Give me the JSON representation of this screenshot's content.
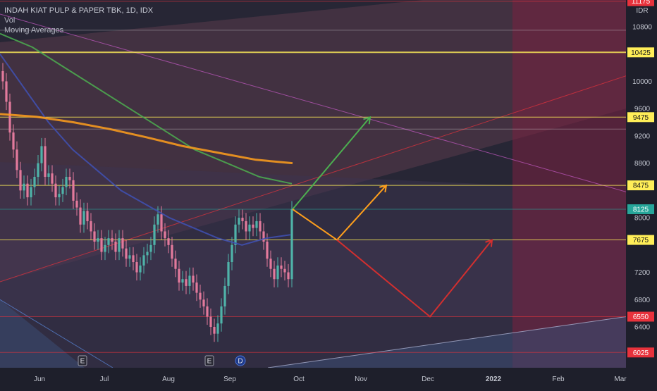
{
  "legend": {
    "title": "INDAH KIAT PULP & PAPER TBK, 1D, IDX",
    "vol": "Vol",
    "ma": "Moving Averages"
  },
  "chart_data": {
    "type": "candlestick",
    "currency": "IDR",
    "x_labels": [
      "Jun",
      "Jul",
      "Aug",
      "Sep",
      "Oct",
      "Nov",
      "Dec",
      "2022",
      "Feb",
      "Mar"
    ],
    "y_ticks": [
      10800,
      10000,
      9600,
      9200,
      8800,
      8000,
      7200,
      6800,
      6400
    ],
    "y_range": [
      6025,
      11175
    ],
    "last_price": 8125,
    "price_levels": [
      {
        "value": 11175,
        "label": "11175",
        "color": "#e8323c"
      },
      {
        "value": 10425,
        "label": "10425",
        "color": "#ffee58"
      },
      {
        "value": 9475,
        "label": "9475",
        "color": "#ffee58"
      },
      {
        "value": 8475,
        "label": "8475",
        "color": "#ffee58"
      },
      {
        "value": 8125,
        "label": "8125",
        "color": "#26a69a"
      },
      {
        "value": 7675,
        "label": "7675",
        "color": "#ffee58"
      },
      {
        "value": 6550,
        "label": "6550",
        "color": "#e8323c"
      },
      {
        "value": 6025,
        "label": "6025",
        "color": "#e8323c"
      }
    ],
    "event_markers": [
      "E",
      "E",
      "D"
    ],
    "candle_closes": [
      10000,
      9700,
      9250,
      9000,
      8700,
      8400,
      8500,
      8300,
      8450,
      8600,
      8800,
      9050,
      8600,
      8650,
      8500,
      8300,
      8350,
      8450,
      8600,
      8550,
      8250,
      8150,
      7900,
      8100,
      7950,
      7800,
      7650,
      7700,
      7500,
      7600,
      7700,
      7650,
      7500,
      7700,
      7550,
      7400,
      7450,
      7350,
      7200,
      7300,
      7450,
      7500,
      7600,
      7900,
      8050,
      7800,
      7700,
      7600,
      7400,
      7250,
      7050,
      7100,
      7000,
      7150,
      7050,
      6900,
      6800,
      6700,
      6550,
      6400,
      6300,
      6450,
      6700,
      7000,
      7350,
      7600,
      7900,
      8000,
      7950,
      7800,
      7900,
      7850,
      7950,
      7800,
      7650,
      7400,
      7250,
      7100,
      7300,
      7250,
      7200,
      7100,
      8125
    ],
    "moving_averages": [
      {
        "color": "#3f51b5",
        "values": [
          10400,
          9900,
          9400,
          9000,
          8700,
          8400,
          8200,
          8000,
          7850,
          7700,
          7600,
          7700,
          7750
        ]
      },
      {
        "color": "#4caf50",
        "values": [
          10700,
          10500,
          10200,
          9900,
          9600,
          9300,
          9000,
          8800,
          8600,
          8500
        ]
      },
      {
        "color": "#ff9f1c",
        "values": [
          9520,
          9480,
          9400,
          9300,
          9180,
          9050,
          8950,
          8850,
          8800
        ]
      }
    ],
    "projections": [
      {
        "color": "#4caf50",
        "points": [
          [
            8125,
            0
          ],
          [
            9475,
            1
          ]
        ]
      },
      {
        "color": "#ff9f1c",
        "points": [
          [
            8125,
            0
          ],
          [
            7675,
            1
          ],
          [
            8475,
            2
          ]
        ]
      },
      {
        "color": "#d32f2f",
        "points": [
          [
            7675,
            0
          ],
          [
            6550,
            1
          ],
          [
            7675,
            2
          ]
        ]
      }
    ]
  }
}
